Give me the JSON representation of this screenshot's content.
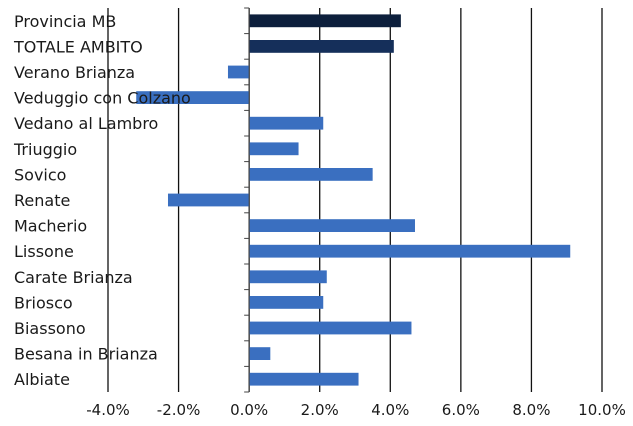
{
  "chart_data": {
    "type": "bar",
    "orientation": "horizontal",
    "categories": [
      "Provincia MB",
      "TOTALE AMBITO",
      "Verano Brianza",
      "Veduggio con Colzano",
      "Vedano al Lambro",
      "Triuggio",
      "Sovico",
      "Renate",
      "Macherio",
      "Lissone",
      "Carate Brianza",
      "Briosco",
      "Biassono",
      "Besana in Brianza",
      "Albiate"
    ],
    "values": [
      0.043,
      0.041,
      -0.006,
      -0.032,
      0.021,
      0.014,
      0.035,
      -0.023,
      0.047,
      0.091,
      0.022,
      0.021,
      0.046,
      0.006,
      0.031
    ],
    "bar_colors": [
      "#0d1f3c",
      "#152f5a",
      "#3a6fc0",
      "#3a6fc0",
      "#3a6fc0",
      "#3a6fc0",
      "#3a6fc0",
      "#3a6fc0",
      "#3a6fc0",
      "#3a6fc0",
      "#3a6fc0",
      "#3a6fc0",
      "#3a6fc0",
      "#3a6fc0",
      "#3a6fc0"
    ],
    "xlim": [
      -0.04,
      0.1
    ],
    "xticks": [
      -0.04,
      -0.02,
      0.0,
      0.02,
      0.04,
      0.06,
      0.08,
      0.1
    ],
    "xtick_labels": [
      "-4.0%",
      "-2.0%",
      "0.0%",
      "2.0%",
      "4.0%",
      "6.0%",
      "8.0%",
      "10.0%"
    ],
    "grid": "vertical",
    "title": "",
    "xlabel": "",
    "ylabel": ""
  }
}
